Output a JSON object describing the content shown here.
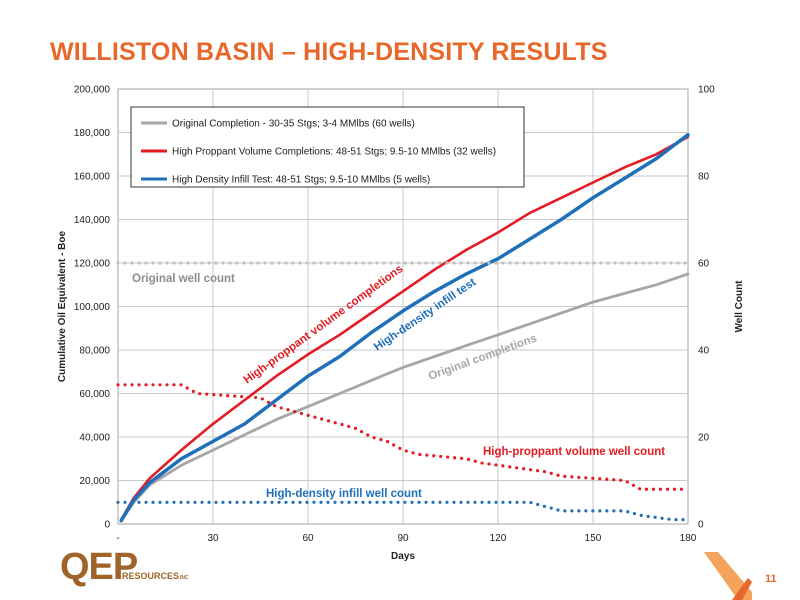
{
  "slide": {
    "title": "WILLISTON BASIN – HIGH-DENSITY RESULTS",
    "page_number": "11",
    "logo": {
      "mark": "QEP",
      "sub": "RESOURCES",
      "tm": "INC"
    },
    "colors": {
      "accent": "#e8672a",
      "logo": "#a0642a"
    }
  },
  "chart_data": {
    "type": "line",
    "xlabel": "Days",
    "ylabel": "Cumulative Oil Equivalent - Boe",
    "y2label": "Well Count",
    "xlim": [
      0,
      180
    ],
    "ylim": [
      0,
      200000
    ],
    "y2lim": [
      0,
      100
    ],
    "x_ticks": [
      0,
      30,
      60,
      90,
      120,
      150,
      180
    ],
    "x_tick_labels": [
      "-",
      "30",
      "60",
      "90",
      "120",
      "150",
      "180"
    ],
    "y_ticks": [
      0,
      20000,
      40000,
      60000,
      80000,
      100000,
      120000,
      140000,
      160000,
      180000,
      200000
    ],
    "y_tick_labels": [
      "0",
      "20,000",
      "40,000",
      "60,000",
      "80,000",
      "100,000",
      "120,000",
      "140,000",
      "160,000",
      "180,000",
      "200,000"
    ],
    "y2_ticks": [
      0,
      20,
      40,
      60,
      80,
      100
    ],
    "y2_tick_labels": [
      "0",
      "20",
      "40",
      "60",
      "80",
      "100"
    ],
    "grid": true,
    "legend_position": "top-left",
    "series": [
      {
        "name": "Original Completion - 30-35 Stgs; 3-4 MMlbs (60 wells)",
        "axis": "left",
        "style": "solid",
        "color": "#a6a6a6",
        "x": [
          1,
          5,
          10,
          20,
          30,
          40,
          50,
          60,
          70,
          80,
          90,
          100,
          110,
          120,
          130,
          140,
          150,
          160,
          170,
          180
        ],
        "y": [
          2000,
          10000,
          18000,
          27000,
          34000,
          41000,
          48000,
          54000,
          60000,
          66000,
          72000,
          77000,
          82000,
          87000,
          92000,
          97000,
          102000,
          106000,
          110000,
          115000
        ]
      },
      {
        "name": "High Proppant Volume Completions: 48-51 Stgs; 9.5-10 MMlbs (32 wells)",
        "axis": "left",
        "style": "solid",
        "color": "#e31b23",
        "x": [
          1,
          5,
          10,
          20,
          30,
          40,
          50,
          60,
          70,
          80,
          90,
          100,
          110,
          120,
          130,
          140,
          150,
          160,
          170,
          180
        ],
        "y": [
          2000,
          12000,
          21000,
          34000,
          46000,
          57000,
          68000,
          78000,
          87000,
          97000,
          107000,
          117000,
          126000,
          134000,
          143000,
          150000,
          157000,
          164000,
          170000,
          178000
        ]
      },
      {
        "name": "High Density Infill Test: 48-51 Stgs; 9.5-10 MMlbs (5 wells)",
        "axis": "left",
        "style": "solid",
        "color": "#1f6fb9",
        "x": [
          1,
          5,
          10,
          20,
          30,
          40,
          50,
          60,
          70,
          80,
          90,
          100,
          110,
          120,
          130,
          140,
          150,
          160,
          170,
          180
        ],
        "y": [
          1500,
          11000,
          19000,
          30000,
          38000,
          46000,
          57000,
          68000,
          77000,
          88000,
          98000,
          107000,
          115000,
          122000,
          131000,
          140000,
          150000,
          159000,
          168000,
          179000
        ]
      },
      {
        "axis": "right",
        "style": "dotted",
        "color": "#bfbfbf",
        "x": [
          0,
          180
        ],
        "y": [
          60,
          60
        ]
      },
      {
        "axis": "right",
        "style": "dotted",
        "color": "#e31b23",
        "x": [
          0,
          20,
          25,
          45,
          50,
          55,
          60,
          65,
          70,
          75,
          80,
          85,
          90,
          95,
          110,
          115,
          125,
          135,
          140,
          160,
          165,
          180
        ],
        "y": [
          32,
          32,
          30,
          29,
          27,
          26,
          25,
          24,
          23,
          22,
          20,
          19,
          17,
          16,
          15,
          14,
          13,
          12,
          11,
          10,
          8,
          8
        ]
      },
      {
        "axis": "right",
        "style": "dotted",
        "color": "#1f6fb9",
        "x": [
          0,
          130,
          140,
          160,
          165,
          175,
          180
        ],
        "y": [
          5,
          5,
          3,
          3,
          2,
          1,
          1
        ]
      }
    ],
    "annotations": [
      {
        "text": "Original well count",
        "color": "#8c8c8c"
      },
      {
        "text": "High-proppant volume completions",
        "color": "#e31b23"
      },
      {
        "text": "High-density infill test",
        "color": "#1f6fb9"
      },
      {
        "text": "Original completions",
        "color": "#a6a6a6"
      },
      {
        "text": "High-proppant volume well count",
        "color": "#e31b23"
      },
      {
        "text": "High-density infill well count",
        "color": "#1f6fb9"
      }
    ]
  }
}
